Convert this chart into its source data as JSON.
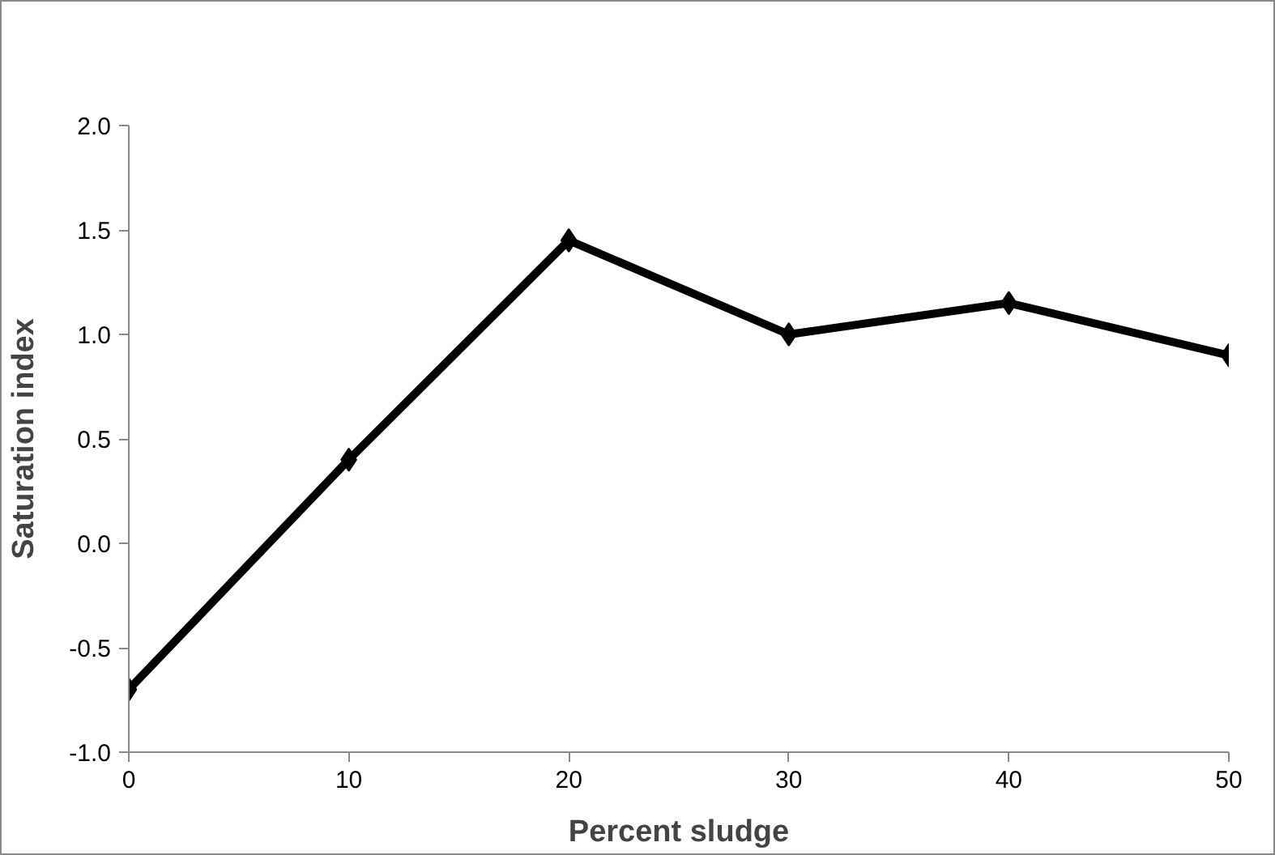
{
  "chart_data": {
    "type": "line",
    "xlabel": "Percent sludge",
    "ylabel": "Saturation index",
    "x": [
      0,
      10,
      20,
      30,
      40,
      50
    ],
    "series": [
      {
        "color": "#000000",
        "values": [
          -0.7,
          0.4,
          1.45,
          1.0,
          1.15,
          0.9
        ]
      }
    ],
    "xlim": [
      0,
      50
    ],
    "xticks": [
      0,
      10,
      20,
      30,
      40,
      50
    ],
    "ylim": [
      -1.0,
      2.0
    ],
    "yticks": [
      {
        "value": -1.0,
        "label": "-1.0"
      },
      {
        "value": -0.5,
        "label": "-0.5"
      },
      {
        "value": 0,
        "label": "0.0"
      },
      {
        "value": 0.5,
        "label": "0.5"
      },
      {
        "value": 1.0,
        "label": "1.0"
      },
      {
        "value": 1.5,
        "label": "1.5"
      },
      {
        "value": 2.0,
        "label": "2.0"
      }
    ],
    "grid": false,
    "marker": "diamond",
    "line_style": "solid"
  }
}
